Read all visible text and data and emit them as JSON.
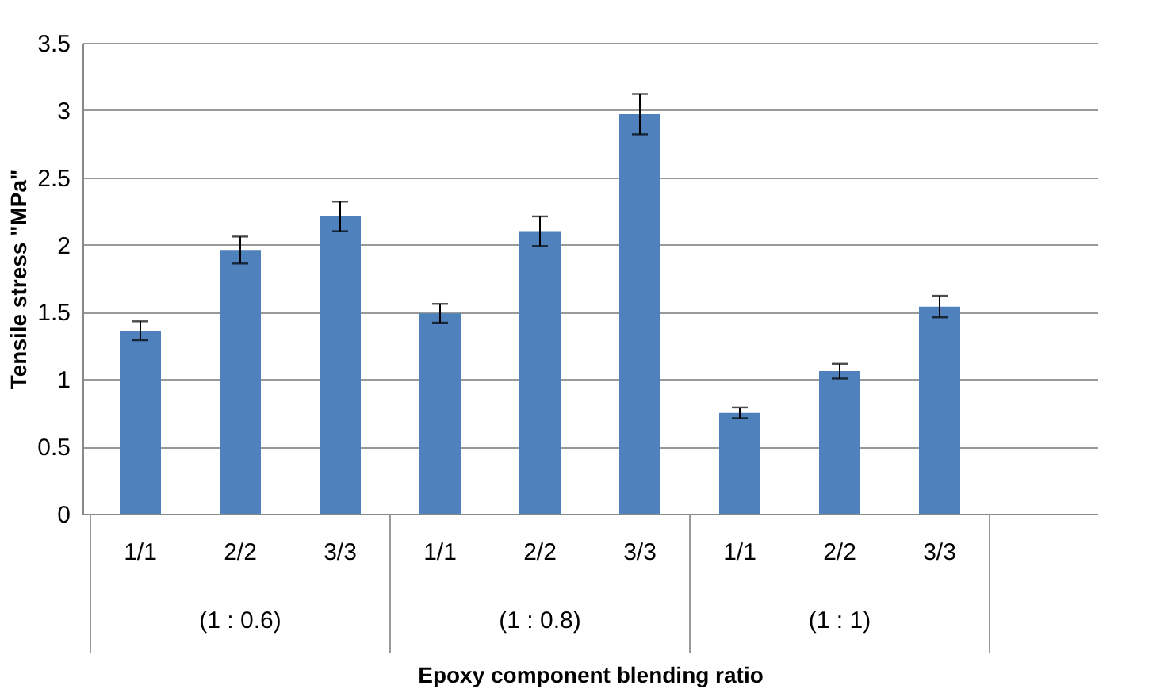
{
  "chart_data": {
    "type": "bar",
    "xlabel": "Epoxy component blending ratio",
    "ylabel": "Tensile stress \"MPa\"",
    "categories": [
      "1/1",
      "2/2",
      "3/3",
      "1/1",
      "2/2",
      "3/3",
      "1/1",
      "2/2",
      "3/3",
      null
    ],
    "values": [
      1.36,
      1.96,
      2.21,
      1.49,
      2.1,
      2.97,
      0.75,
      1.06,
      1.54,
      null
    ],
    "errors": [
      0.07,
      0.1,
      0.11,
      0.07,
      0.11,
      0.15,
      0.04,
      0.055,
      0.08,
      null
    ],
    "color": "#4f81bd",
    "annotations": [
      "(1 : 0.6)",
      "(1 : 0.8)",
      "(1 : 1)"
    ],
    "ylim": [
      0,
      3.5
    ],
    "yticks": [
      0,
      0.5,
      1,
      1.5,
      2,
      2.5,
      3,
      3.5
    ],
    "grid": "y"
  }
}
